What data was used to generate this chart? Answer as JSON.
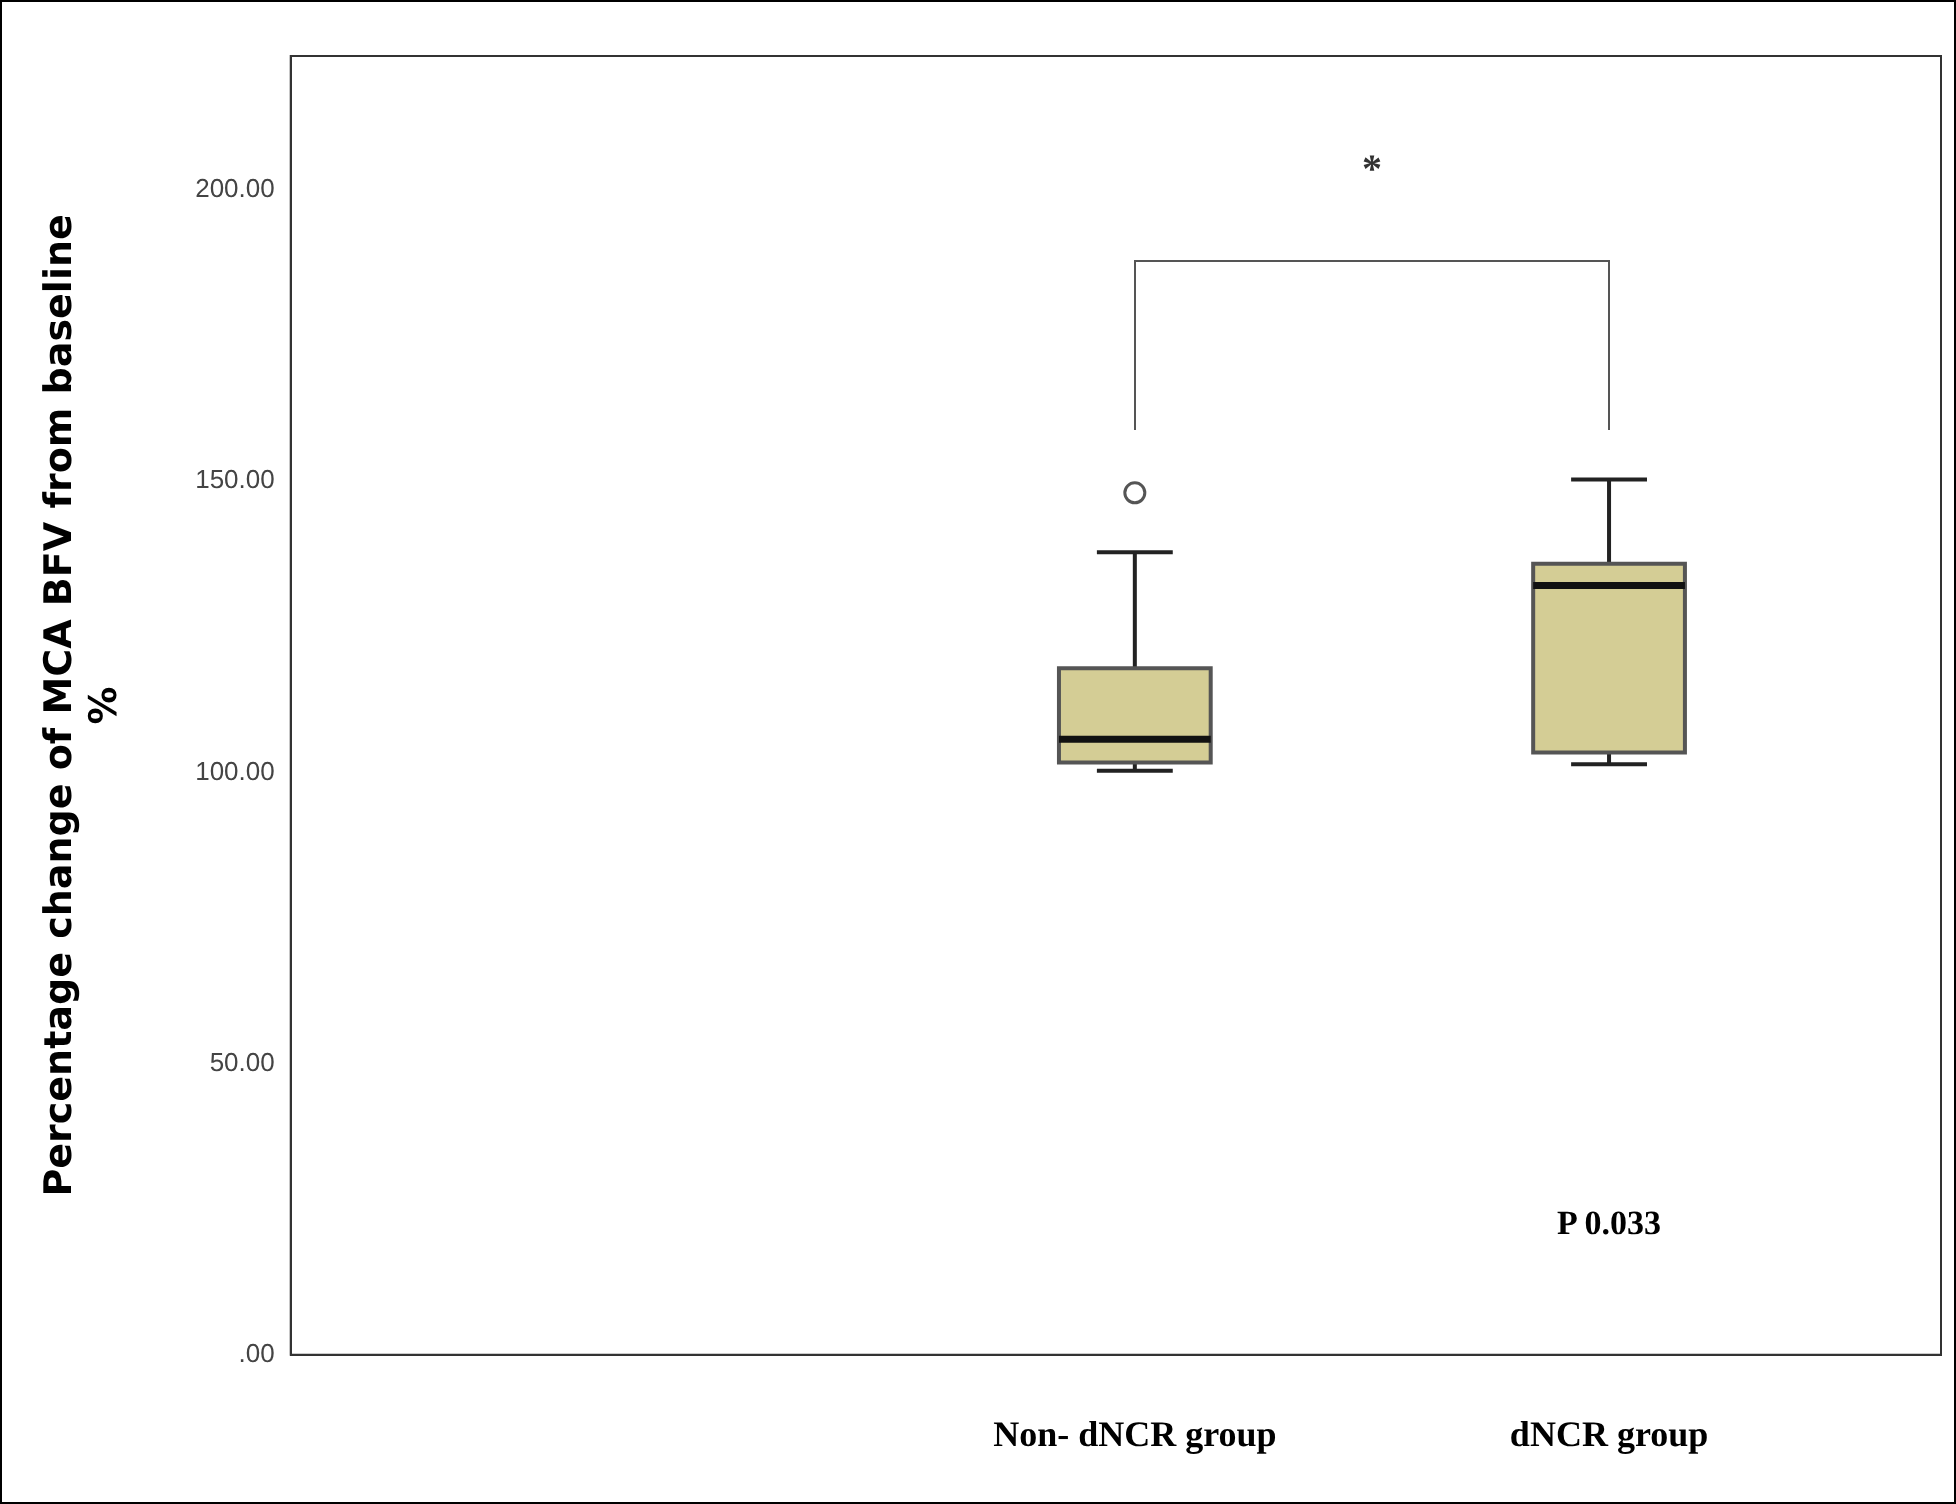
{
  "chart_data": {
    "type": "box",
    "ylabel": "Percentage change of MCA BFV from baseline\n%",
    "categories": [
      null,
      "Non- dNCR group",
      "dNCR group"
    ],
    "boxes": [
      null,
      {
        "low": 100.3,
        "q1": 101.7,
        "median": 105.7,
        "q3": 117.9,
        "high": 137.8,
        "outliers": [
          148
        ]
      },
      {
        "low": 101.4,
        "q1": 103.4,
        "median": 132.1,
        "q3": 135.8,
        "high": 150.3
      }
    ],
    "color": "#d4cd95",
    "ylim": [
      0,
      223
    ],
    "yticks": [
      {
        "value": 0,
        "label": ".00"
      },
      {
        "value": 50,
        "label": "50.00"
      },
      {
        "value": 100,
        "label": "100.00"
      },
      {
        "value": 150,
        "label": "150.00"
      },
      {
        "value": 200,
        "label": "200.00"
      }
    ],
    "grid": false,
    "legend": false,
    "annotations": [
      "*",
      "P 0.033"
    ]
  }
}
